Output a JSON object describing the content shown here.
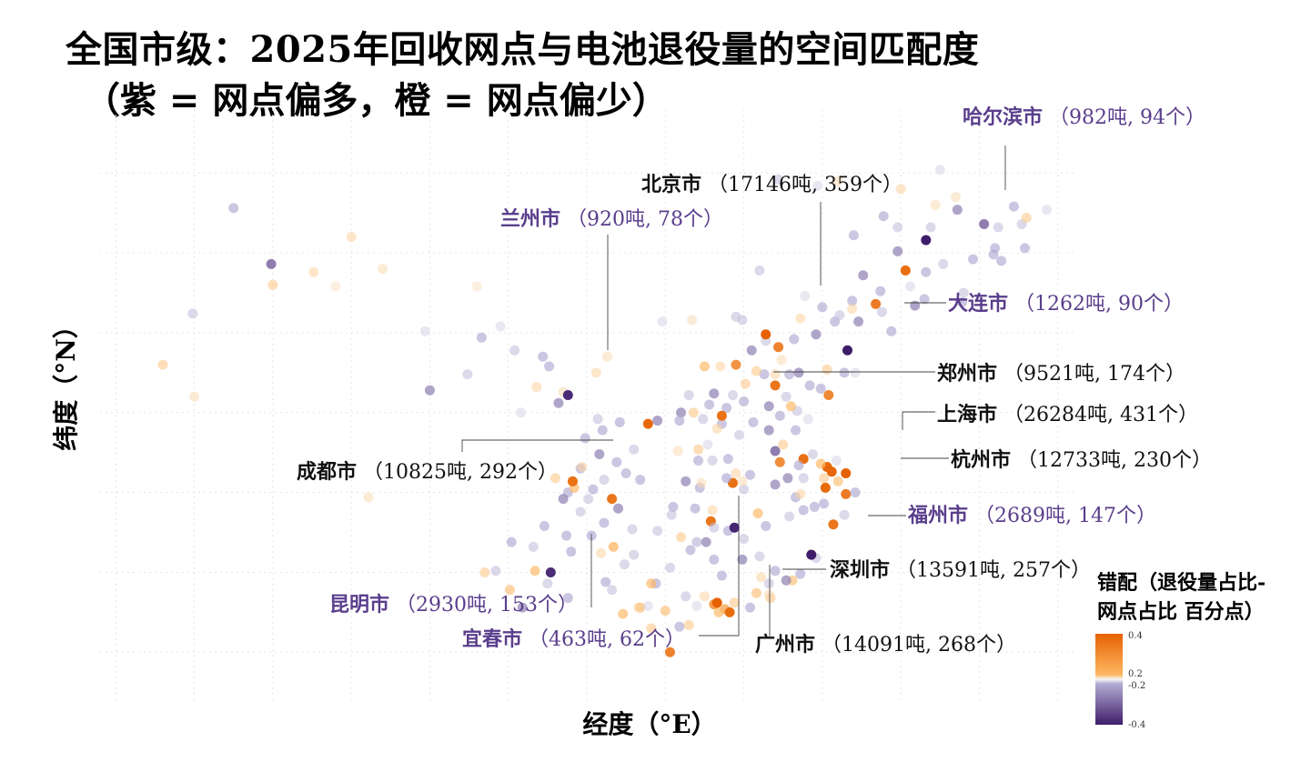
{
  "title": {
    "line1": "全国市级：2025年回收网点与电池退役量的空间匹配度",
    "line2": "（紫 = 网点偏多，橙 = 网点偏少）"
  },
  "chart_data": {
    "type": "scatter",
    "xlabel": "经度（°E）",
    "ylabel": "纬度（°N）",
    "xlim": [
      74,
      136
    ],
    "ylim": [
      17,
      54
    ],
    "grid": true,
    "legend": {
      "title_line1": "错配（退役量占比-",
      "title_line2": "网点占比 百分点）",
      "ticks": [
        "0.4",
        "0.2",
        "-0.2",
        "-0.4"
      ],
      "range": [
        -0.4,
        0.4
      ],
      "position": "bottom-right"
    },
    "labeled_cities": [
      {
        "name": "哈尔滨市",
        "text": "（982吨, 94个）",
        "lon": 126.6,
        "lat": 45.8,
        "mismatch": -0.4
      },
      {
        "name": "北京市",
        "text": "（17146吨, 359个）",
        "lon": 116.4,
        "lat": 39.9,
        "mismatch": 0.4
      },
      {
        "name": "兰州市",
        "text": "（920吨, 78个）",
        "lon": 103.8,
        "lat": 36.1,
        "mismatch": -0.38
      },
      {
        "name": "大连市",
        "text": "（1262吨, 90个）",
        "lon": 121.6,
        "lat": 38.9,
        "mismatch": -0.4
      },
      {
        "name": "郑州市",
        "text": "（9521吨, 174个）",
        "lon": 113.6,
        "lat": 34.8,
        "mismatch": 0.36
      },
      {
        "name": "上海市",
        "text": "（26284吨, 431个）",
        "lon": 121.5,
        "lat": 31.2,
        "mismatch": 0.4
      },
      {
        "name": "杭州市",
        "text": "（12733吨, 230个）",
        "lon": 120.2,
        "lat": 30.3,
        "mismatch": 0.38
      },
      {
        "name": "成都市",
        "text": "（10825吨, 292个）",
        "lon": 104.1,
        "lat": 30.7,
        "mismatch": 0.36
      },
      {
        "name": "福州市",
        "text": "（2689吨, 147个）",
        "lon": 119.3,
        "lat": 26.1,
        "mismatch": -0.4
      },
      {
        "name": "深圳市",
        "text": "（13591吨, 257个）",
        "lon": 114.1,
        "lat": 22.5,
        "mismatch": 0.37
      },
      {
        "name": "昆明市",
        "text": "（2930吨, 153个）",
        "lon": 102.7,
        "lat": 25.0,
        "mismatch": -0.38
      },
      {
        "name": "宜春市",
        "text": "（463吨, 62个）",
        "lon": 114.4,
        "lat": 27.8,
        "mismatch": -0.39
      },
      {
        "name": "广州市",
        "text": "（14091吨, 268个）",
        "lon": 113.3,
        "lat": 23.1,
        "mismatch": 0.4
      }
    ],
    "points": [
      [
        125.3,
        43.9,
        0.38
      ],
      [
        123.4,
        41.8,
        0.36
      ],
      [
        117.2,
        39.1,
        0.35
      ],
      [
        114.5,
        38.0,
        0.32
      ],
      [
        112.5,
        37.9,
        0.2
      ],
      [
        117.0,
        36.7,
        0.37
      ],
      [
        120.4,
        36.1,
        0.34
      ],
      [
        118.8,
        32.1,
        0.38
      ],
      [
        120.6,
        31.3,
        0.39
      ],
      [
        119.3,
        26.1,
        0.3
      ],
      [
        117.3,
        31.9,
        0.33
      ],
      [
        115.9,
        28.7,
        0.2
      ],
      [
        112.9,
        28.2,
        0.37
      ],
      [
        114.3,
        30.6,
        0.38
      ],
      [
        108.9,
        34.3,
        0.39
      ],
      [
        106.6,
        29.6,
        0.37
      ],
      [
        106.7,
        26.6,
        0.22
      ],
      [
        108.4,
        22.8,
        0.2
      ],
      [
        110.3,
        20.0,
        0.35
      ],
      [
        120.3,
        31.6,
        0.39
      ],
      [
        121.5,
        29.9,
        0.36
      ],
      [
        120.7,
        28.0,
        0.37
      ],
      [
        119.9,
        31.8,
        0.2
      ],
      [
        118.1,
        24.5,
        0.18
      ],
      [
        113.1,
        23.0,
        0.3
      ],
      [
        113.8,
        22.7,
        0.25
      ],
      [
        113.4,
        22.5,
        0.2
      ],
      [
        116.7,
        23.4,
        0.15
      ],
      [
        87.6,
        43.8,
        0.12
      ],
      [
        91.1,
        29.7,
        0.1
      ],
      [
        101.8,
        36.6,
        0.12
      ],
      [
        106.3,
        38.5,
        0.1
      ],
      [
        111.7,
        40.8,
        0.1
      ],
      [
        130.3,
        46.8,
        -0.3
      ],
      [
        131.0,
        45.3,
        -0.2
      ],
      [
        128.6,
        47.7,
        -0.25
      ],
      [
        124.8,
        46.6,
        -0.15
      ],
      [
        122.0,
        46.1,
        -0.2
      ],
      [
        119.7,
        49.2,
        -0.1
      ],
      [
        117.2,
        49.6,
        -0.15
      ],
      [
        109.8,
        40.7,
        -0.1
      ],
      [
        111.0,
        35.0,
        -0.25
      ],
      [
        113.9,
        35.3,
        -0.2
      ],
      [
        112.4,
        34.6,
        -0.15
      ],
      [
        115.6,
        34.4,
        -0.2
      ],
      [
        116.6,
        33.9,
        -0.25
      ],
      [
        117.0,
        32.6,
        -0.3
      ],
      [
        118.3,
        33.9,
        -0.2
      ],
      [
        119.1,
        34.6,
        -0.1
      ],
      [
        119.4,
        32.4,
        -0.15
      ],
      [
        120.9,
        32.0,
        -0.1
      ],
      [
        118.8,
        28.9,
        -0.2
      ],
      [
        117.9,
        28.5,
        -0.15
      ],
      [
        117.0,
        25.1,
        -0.2
      ],
      [
        116.0,
        26.0,
        -0.15
      ],
      [
        114.9,
        25.8,
        -0.25
      ],
      [
        113.6,
        24.8,
        -0.2
      ],
      [
        112.0,
        26.9,
        -0.18
      ],
      [
        111.6,
        26.4,
        -0.2
      ],
      [
        110.3,
        25.3,
        -0.15
      ],
      [
        109.4,
        24.3,
        -0.2
      ],
      [
        107.4,
        25.5,
        -0.15
      ],
      [
        105.3,
        27.3,
        -0.2
      ],
      [
        104.6,
        28.8,
        -0.15
      ],
      [
        103.8,
        30.0,
        -0.2
      ],
      [
        105.8,
        32.4,
        -0.25
      ],
      [
        107.5,
        31.2,
        -0.2
      ],
      [
        106.1,
        30.8,
        -0.15
      ],
      [
        108.4,
        30.8,
        -0.2
      ],
      [
        109.5,
        34.5,
        -0.25
      ],
      [
        107.1,
        34.4,
        -0.2
      ],
      [
        105.7,
        34.6,
        -0.15
      ],
      [
        104.9,
        33.4,
        -0.2
      ],
      [
        103.2,
        35.6,
        -0.25
      ],
      [
        102.6,
        37.9,
        -0.2
      ],
      [
        100.4,
        38.9,
        -0.15
      ],
      [
        98.3,
        39.7,
        -0.2
      ],
      [
        94.7,
        40.1,
        -0.1
      ],
      [
        95.0,
        36.4,
        -0.25
      ],
      [
        97.4,
        37.4,
        -0.15
      ],
      [
        100.2,
        26.9,
        -0.2
      ],
      [
        101.6,
        26.6,
        -0.15
      ],
      [
        103.8,
        23.4,
        -0.2
      ],
      [
        100.9,
        22.8,
        -0.25
      ],
      [
        99.2,
        25.1,
        -0.15
      ],
      [
        110.9,
        21.6,
        -0.2
      ],
      [
        111.3,
        23.5,
        -0.15
      ],
      [
        112.0,
        22.9,
        -0.1
      ],
      [
        115.4,
        22.8,
        -0.2
      ],
      [
        116.6,
        24.3,
        -0.15
      ],
      [
        117.7,
        24.5,
        -0.25
      ],
      [
        118.6,
        24.9,
        -0.2
      ],
      [
        119.6,
        25.9,
        -0.15
      ],
      [
        120.1,
        29.3,
        -0.2
      ],
      [
        121.4,
        28.6,
        -0.15
      ],
      [
        122.1,
        30.0,
        -0.2
      ],
      [
        119.5,
        29.1,
        -0.2
      ],
      [
        116.3,
        37.4,
        -0.2
      ],
      [
        115.5,
        38.9,
        -0.25
      ],
      [
        114.9,
        40.8,
        -0.15
      ],
      [
        118.2,
        39.6,
        -0.2
      ],
      [
        119.6,
        39.9,
        -0.25
      ],
      [
        120.8,
        40.7,
        -0.2
      ],
      [
        121.1,
        41.1,
        -0.15
      ],
      [
        122.3,
        40.7,
        -0.25
      ],
      [
        124.4,
        40.1,
        -0.2
      ],
      [
        123.8,
        41.3,
        -0.15
      ],
      [
        126.6,
        43.8,
        -0.2
      ],
      [
        125.9,
        41.7,
        -0.25
      ],
      [
        129.6,
        44.6,
        -0.2
      ],
      [
        127.5,
        50.2,
        -0.1
      ],
      [
        123.9,
        47.3,
        -0.2
      ],
      [
        126.9,
        46.6,
        -0.15
      ],
      [
        120.0,
        41.6,
        -0.2
      ],
      [
        118.9,
        42.3,
        -0.1
      ],
      [
        112.8,
        35.5,
        -0.2
      ],
      [
        111.5,
        36.1,
        -0.15
      ],
      [
        113.1,
        36.2,
        -0.25
      ],
      [
        110.9,
        34.5,
        -0.2
      ],
      [
        114.3,
        36.1,
        -0.15
      ],
      [
        115.0,
        35.7,
        -0.2
      ],
      [
        116.4,
        39.5,
        -0.15
      ],
      [
        117.9,
        37.4,
        -0.2
      ],
      [
        118.5,
        37.5,
        -0.25
      ],
      [
        119.2,
        36.7,
        -0.2
      ],
      [
        118.4,
        35.1,
        -0.15
      ],
      [
        117.3,
        34.8,
        -0.2
      ],
      [
        116.6,
        35.4,
        -0.25
      ],
      [
        121.4,
        37.5,
        -0.2
      ],
      [
        122.1,
        37.5,
        -0.1
      ],
      [
        114.0,
        32.1,
        -0.2
      ],
      [
        113.0,
        32.0,
        -0.15
      ],
      [
        112.1,
        32.0,
        -0.2
      ],
      [
        111.3,
        30.7,
        -0.25
      ],
      [
        113.9,
        30.9,
        -0.2
      ],
      [
        115.0,
        30.2,
        -0.15
      ],
      [
        112.2,
        30.3,
        -0.2
      ],
      [
        109.5,
        27.6,
        -0.15
      ],
      [
        110.5,
        29.1,
        -0.2
      ],
      [
        113.1,
        25.8,
        -0.2
      ],
      [
        112.6,
        26.9,
        -0.25
      ],
      [
        113.1,
        27.8,
        -0.15
      ],
      [
        114.0,
        27.6,
        -0.2
      ],
      [
        115.0,
        27.1,
        -0.15
      ],
      [
        116.4,
        27.9,
        -0.2
      ],
      [
        117.0,
        30.5,
        -0.25
      ],
      [
        118.3,
        29.7,
        -0.2
      ],
      [
        118.8,
        30.9,
        -0.15
      ],
      [
        118.5,
        31.7,
        -0.2
      ],
      [
        117.8,
        30.9,
        -0.25
      ],
      [
        108.9,
        22.9,
        -0.1
      ],
      [
        106.6,
        23.9,
        -0.15
      ],
      [
        104.0,
        26.3,
        -0.2
      ],
      [
        102.5,
        24.3,
        -0.15
      ],
      [
        103.7,
        27.3,
        -0.2
      ],
      [
        103.5,
        29.6,
        -0.25
      ],
      [
        102.3,
        27.9,
        -0.2
      ],
      [
        100.8,
        35.0,
        -0.1
      ],
      [
        104.6,
        31.5,
        -0.2
      ],
      [
        105.1,
        29.6,
        -0.15
      ],
      [
        106.1,
        28.1,
        -0.2
      ],
      [
        107.0,
        29.0,
        -0.25
      ],
      [
        108.0,
        32.7,
        -0.15
      ],
      [
        106.0,
        33.9,
        -0.2
      ],
      [
        115.4,
        31.1,
        -0.2
      ],
      [
        114.7,
        33.6,
        -0.15
      ],
      [
        113.6,
        34.3,
        -0.2
      ],
      [
        112.7,
        33.0,
        -0.1
      ],
      [
        111.9,
        29.0,
        -0.2
      ],
      [
        110.4,
        28.6,
        -0.15
      ],
      [
        84.9,
        44.3,
        -0.3
      ],
      [
        82.5,
        47.8,
        -0.2
      ],
      [
        79.9,
        41.2,
        -0.15
      ],
      [
        99.5,
        40.4,
        -0.1
      ],
      [
        102.2,
        38.5,
        -0.2
      ],
      [
        114.5,
        41.0,
        -0.15
      ],
      [
        121.9,
        42.0,
        -0.2
      ],
      [
        123.7,
        42.6,
        -0.2
      ],
      [
        122.6,
        43.6,
        -0.25
      ],
      [
        130.9,
        44.9,
        -0.2
      ],
      [
        131.2,
        46.6,
        -0.15
      ],
      [
        132.9,
        45.3,
        -0.2
      ],
      [
        134.3,
        47.7,
        -0.1
      ],
      [
        128.9,
        41.9,
        -0.2
      ],
      [
        127.7,
        44.3,
        -0.15
      ],
      [
        126.5,
        42.1,
        -0.2
      ],
      [
        124.8,
        45.1,
        -0.25
      ],
      [
        125.6,
        42.9,
        -0.1
      ],
      [
        129.0,
        42.5,
        -0.15
      ],
      [
        131.4,
        44.5,
        -0.2
      ],
      [
        132.7,
        46.8,
        -0.15
      ],
      [
        132.2,
        47.9,
        -0.2
      ],
      [
        116.0,
        43.9,
        -0.15
      ],
      [
        119.9,
        36.5,
        -0.2
      ],
      [
        117.7,
        36.0,
        -0.15
      ],
      [
        105.4,
        30.2,
        -0.2
      ],
      [
        107.9,
        27.7,
        -0.15
      ],
      [
        106.9,
        31.9,
        -0.2
      ],
      [
        108.0,
        26.1,
        -0.15
      ],
      [
        106.2,
        24.4,
        -0.2
      ],
      [
        120.3,
        37.7,
        0.15
      ],
      [
        118.0,
        35.4,
        0.2
      ],
      [
        117.4,
        38.3,
        0.1
      ],
      [
        115.1,
        36.8,
        0.15
      ],
      [
        113.5,
        37.9,
        0.12
      ],
      [
        112.1,
        32.7,
        0.15
      ],
      [
        113.0,
        28.9,
        0.12
      ],
      [
        111.0,
        27.2,
        0.15
      ],
      [
        104.2,
        30.3,
        0.2
      ],
      [
        104.7,
        31.6,
        0.12
      ],
      [
        103.0,
        30.9,
        0.15
      ],
      [
        101.7,
        25.1,
        0.2
      ],
      [
        98.5,
        25.0,
        0.15
      ],
      [
        100.1,
        23.9,
        0.18
      ],
      [
        105.9,
        26.2,
        0.12
      ],
      [
        109.1,
        24.3,
        0.2
      ],
      [
        110.0,
        22.6,
        0.18
      ],
      [
        111.5,
        21.7,
        0.15
      ],
      [
        112.5,
        23.5,
        0.12
      ],
      [
        114.4,
        23.1,
        0.15
      ],
      [
        115.8,
        23.7,
        0.18
      ],
      [
        116.1,
        24.7,
        0.12
      ],
      [
        116.6,
        23.6,
        0.1
      ],
      [
        109.1,
        21.5,
        0.15
      ],
      [
        108.3,
        22.8,
        0.12
      ],
      [
        107.3,
        22.4,
        0.2
      ],
      [
        121.9,
        41.5,
        0.12
      ],
      [
        118.6,
        40.9,
        0.12
      ],
      [
        115.8,
        37.6,
        0.15
      ],
      [
        117.0,
        37.4,
        0.12
      ],
      [
        114.5,
        31.2,
        0.12
      ],
      [
        117.5,
        33.0,
        0.15
      ],
      [
        118.6,
        29.9,
        0.12
      ],
      [
        121.0,
        30.7,
        0.18
      ],
      [
        112.3,
        30.6,
        0.1
      ],
      [
        120.1,
        30.9,
        0.15
      ],
      [
        113.3,
        34.0,
        0.12
      ],
      [
        111.8,
        35.0,
        0.15
      ],
      [
        114.9,
        30.7,
        0.1
      ],
      [
        110.8,
        32.6,
        0.1
      ],
      [
        105.6,
        37.5,
        0.12
      ],
      [
        103.5,
        36.3,
        0.1
      ],
      [
        98.0,
        42.9,
        0.08
      ],
      [
        92.0,
        44.0,
        0.1
      ],
      [
        78.0,
        38.0,
        0.15
      ],
      [
        90.0,
        46.0,
        0.12
      ],
      [
        85.0,
        43.0,
        0.15
      ],
      [
        80.0,
        36.0,
        0.1
      ],
      [
        89.0,
        42.9,
        0.08
      ],
      [
        128.5,
        48.5,
        0.1
      ],
      [
        133.0,
        47.2,
        0.15
      ],
      [
        127.2,
        48.0,
        0.1
      ],
      [
        125.0,
        49.0,
        0.12
      ],
      [
        121.0,
        49.5,
        0.1
      ]
    ]
  }
}
